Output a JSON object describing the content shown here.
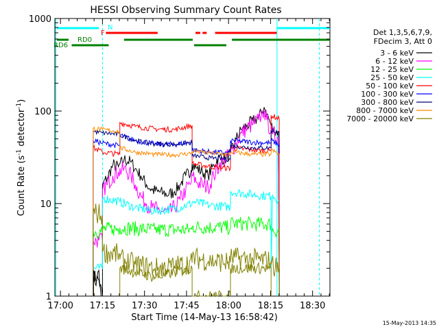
{
  "chart_data": {
    "type": "line",
    "title": "HESSI Observing Summary Count Rates",
    "xlabel": "Start Time (14-May-13 16:58:42)",
    "ylabel_main": "Count Rate (s",
    "ylabel_sup1": "-1",
    "ylabel_mid": " detector",
    "ylabel_sup2": "-1",
    "ylabel_end": ")",
    "y_scale": "log",
    "ylim": [
      1,
      1000
    ],
    "xlim_minutes": [
      -0.7,
      97.5
    ],
    "x_ticks": [
      {
        "label": "17:00",
        "m": 1.3
      },
      {
        "label": "17:15",
        "m": 16.3
      },
      {
        "label": "17:30",
        "m": 31.3
      },
      {
        "label": "17:45",
        "m": 46.3
      },
      {
        "label": "18:00",
        "m": 61.3
      },
      {
        "label": "18:15",
        "m": 76.3
      },
      {
        "label": "18:30",
        "m": 91.3
      }
    ],
    "y_ticks": [
      {
        "label": "1",
        "v": 1
      },
      {
        "label": "10",
        "v": 10
      },
      {
        "label": "100",
        "v": 100
      },
      {
        "label": "1000",
        "v": 1000
      }
    ],
    "legend_header": [
      "Det 1,3,5,6,7,9,",
      "FDecim 3, Att 0"
    ],
    "legend_position": "top-right, outside plot",
    "series": [
      {
        "name": "3 - 6 keV",
        "color": "#000000",
        "values": [
          [
            13.0,
            1.0
          ],
          [
            13.0,
            1.7
          ],
          [
            15,
            1.5
          ],
          [
            16.3,
            1.0
          ],
          [
            16.3,
            16
          ],
          [
            18,
            19
          ],
          [
            20,
            26
          ],
          [
            22,
            25
          ],
          [
            24,
            30
          ],
          [
            26.5,
            28
          ],
          [
            28,
            24
          ],
          [
            30,
            20
          ],
          [
            32,
            16
          ],
          [
            34,
            14
          ],
          [
            36,
            13.5
          ],
          [
            38,
            13
          ],
          [
            40,
            12.5
          ],
          [
            42,
            13.5
          ],
          [
            44,
            16
          ],
          [
            46,
            20
          ],
          [
            48,
            23
          ],
          [
            48.3,
            27
          ],
          [
            50,
            24
          ],
          [
            52,
            22
          ],
          [
            54,
            20
          ],
          [
            56,
            26
          ],
          [
            58,
            32
          ],
          [
            60,
            30
          ],
          [
            62,
            35
          ],
          [
            64,
            50
          ],
          [
            66,
            64
          ],
          [
            68,
            70
          ],
          [
            70,
            78
          ],
          [
            72,
            85
          ],
          [
            73,
            95
          ],
          [
            74,
            110
          ],
          [
            75,
            93
          ],
          [
            76.5,
            70
          ],
          [
            77,
            64
          ],
          [
            79,
            60
          ],
          [
            79.4,
            1.0
          ]
        ]
      },
      {
        "name": "6 - 12 keV",
        "color": "#ff00ff",
        "values": [
          [
            13.0,
            1.0
          ],
          [
            13.0,
            4.0
          ],
          [
            15,
            4.0
          ],
          [
            16.3,
            4.0
          ],
          [
            16.3,
            14
          ],
          [
            18,
            16
          ],
          [
            20,
            20
          ],
          [
            22,
            22
          ],
          [
            24,
            24
          ],
          [
            26.5,
            20
          ],
          [
            28,
            16
          ],
          [
            30,
            12
          ],
          [
            32,
            10
          ],
          [
            34,
            9
          ],
          [
            36,
            8.5
          ],
          [
            38,
            8.2
          ],
          [
            40,
            8.0
          ],
          [
            42,
            9.0
          ],
          [
            44,
            11
          ],
          [
            46,
            14
          ],
          [
            48,
            17
          ],
          [
            48.3,
            20
          ],
          [
            50,
            17
          ],
          [
            52,
            16
          ],
          [
            54,
            15
          ],
          [
            56,
            20
          ],
          [
            58,
            26
          ],
          [
            60,
            30
          ],
          [
            62,
            35
          ],
          [
            64,
            45
          ],
          [
            66,
            58
          ],
          [
            68,
            65
          ],
          [
            70,
            72
          ],
          [
            72,
            80
          ],
          [
            73,
            90
          ],
          [
            74,
            100
          ],
          [
            75,
            80
          ],
          [
            76.5,
            60
          ],
          [
            77,
            56
          ],
          [
            79,
            52
          ],
          [
            79.4,
            3.0
          ]
        ]
      },
      {
        "name": "12 - 25 keV",
        "color": "#00ff00",
        "values": [
          [
            13.0,
            1.0
          ],
          [
            13.0,
            5.0
          ],
          [
            16.3,
            5.0
          ],
          [
            16.3,
            5.3
          ],
          [
            20,
            5.3
          ],
          [
            22.5,
            5.3
          ],
          [
            22.5,
            5.5
          ],
          [
            35,
            5.2
          ],
          [
            48.3,
            5.2
          ],
          [
            48.3,
            5.6
          ],
          [
            62,
            5.5
          ],
          [
            62,
            6.1
          ],
          [
            70,
            6.0
          ],
          [
            76.5,
            6.0
          ],
          [
            76.5,
            5.2
          ],
          [
            79.4,
            5.0
          ],
          [
            79.4,
            1.0
          ]
        ]
      },
      {
        "name": "25 - 50 keV",
        "color": "#00ffff",
        "values": [
          [
            13.0,
            1.0
          ],
          [
            13.0,
            2.0
          ],
          [
            16.3,
            2.0
          ],
          [
            16.3,
            11.5
          ],
          [
            22.5,
            10.5
          ],
          [
            22.5,
            10.5
          ],
          [
            28,
            9.0
          ],
          [
            35,
            8.3
          ],
          [
            42,
            8.8
          ],
          [
            48.3,
            10.0
          ],
          [
            48.3,
            10.5
          ],
          [
            55,
            9.5
          ],
          [
            62,
            9.2
          ],
          [
            62,
            13.5
          ],
          [
            70,
            12.5
          ],
          [
            76.5,
            12.0
          ],
          [
            76.5,
            1.8
          ],
          [
            77,
            12.5
          ],
          [
            79.4,
            10.5
          ],
          [
            79.4,
            1.0
          ]
        ]
      },
      {
        "name": "50 - 100 keV",
        "color": "#ff0000",
        "values": [
          [
            13.0,
            1.0
          ],
          [
            13.0,
            40
          ],
          [
            16.3,
            36
          ],
          [
            16.3,
            36
          ],
          [
            22.5,
            34
          ],
          [
            22.5,
            75
          ],
          [
            28,
            68
          ],
          [
            35,
            64
          ],
          [
            42,
            63
          ],
          [
            48.3,
            70
          ],
          [
            48.3,
            27
          ],
          [
            55,
            25
          ],
          [
            62,
            24
          ],
          [
            62,
            40
          ],
          [
            70,
            38
          ],
          [
            76.5,
            37
          ],
          [
            76.5,
            90
          ],
          [
            79.4,
            82
          ],
          [
            79.4,
            1.0
          ]
        ]
      },
      {
        "name": "100 - 300 keV",
        "color": "#0000ff",
        "values": [
          [
            13.0,
            1.0
          ],
          [
            13.0,
            48
          ],
          [
            16.3,
            45
          ],
          [
            16.3,
            45
          ],
          [
            22.5,
            42
          ],
          [
            22.5,
            55
          ],
          [
            28,
            48
          ],
          [
            35,
            44
          ],
          [
            42,
            43.5
          ],
          [
            48.3,
            46
          ],
          [
            48.3,
            38
          ],
          [
            55,
            36
          ],
          [
            62,
            35
          ],
          [
            62,
            48
          ],
          [
            70,
            46
          ],
          [
            76.5,
            45
          ],
          [
            76.5,
            48
          ],
          [
            79.4,
            43
          ],
          [
            79.4,
            1.0
          ]
        ]
      },
      {
        "name": "300 - 800 keV",
        "color": "#000080",
        "values": [
          [
            13.0,
            1.0
          ],
          [
            13.0,
            60
          ],
          [
            16.3,
            58
          ],
          [
            16.3,
            58
          ],
          [
            22.5,
            56
          ],
          [
            22.5,
            55
          ],
          [
            28,
            48
          ],
          [
            35,
            44
          ],
          [
            42,
            43.5
          ],
          [
            48.3,
            46
          ],
          [
            48.3,
            33
          ],
          [
            55,
            31
          ],
          [
            62,
            30
          ],
          [
            62,
            42
          ],
          [
            70,
            40
          ],
          [
            76.5,
            40
          ],
          [
            76.5,
            62
          ],
          [
            79.4,
            58
          ],
          [
            79.4,
            1.0
          ]
        ]
      },
      {
        "name": "800 - 7000 keV",
        "color": "#ff8800",
        "values": [
          [
            13.0,
            1.0
          ],
          [
            13.0,
            65
          ],
          [
            16.3,
            63
          ],
          [
            16.3,
            63
          ],
          [
            22.5,
            60
          ],
          [
            22.5,
            40
          ],
          [
            28,
            36
          ],
          [
            35,
            34
          ],
          [
            42,
            33.5
          ],
          [
            48.3,
            35
          ],
          [
            48.3,
            37
          ],
          [
            55,
            35
          ],
          [
            62,
            34
          ],
          [
            62,
            36
          ],
          [
            70,
            34
          ],
          [
            76.5,
            34
          ],
          [
            76.5,
            38
          ],
          [
            79.4,
            34
          ],
          [
            79.4,
            1.0
          ]
        ]
      },
      {
        "name": "7000 - 20000 keV",
        "color": "#808000",
        "values": [
          [
            13.0,
            1.0
          ],
          [
            13.0,
            8.0
          ],
          [
            16.3,
            7.5
          ],
          [
            16.3,
            3.0
          ],
          [
            22.5,
            2.8
          ],
          [
            22.5,
            2.5
          ],
          [
            28,
            2.2
          ],
          [
            35,
            2.0
          ],
          [
            42,
            2.1
          ],
          [
            48.3,
            2.3
          ],
          [
            48.3,
            2.6
          ],
          [
            55,
            2.4
          ],
          [
            62,
            2.3
          ],
          [
            62,
            2.6
          ],
          [
            70,
            2.5
          ],
          [
            76.5,
            2.4
          ],
          [
            76.5,
            2.2
          ],
          [
            79.4,
            2.0
          ],
          [
            79.4,
            1.0
          ]
        ]
      },
      {
        "name": "7000 - 20000 keV (low)",
        "color": "#808000",
        "values": [
          [
            22.5,
            1.0
          ],
          [
            22.5,
            2.0
          ],
          [
            35,
            1.6
          ],
          [
            48.3,
            2.0
          ],
          [
            48.3,
            1.0
          ],
          [
            62,
            1.0
          ],
          [
            62,
            2.0
          ],
          [
            76.5,
            2.0
          ],
          [
            76.5,
            1.0
          ]
        ]
      },
      {
        "name": "3 - 6 keV (spikes)",
        "color": "#000000",
        "values": [
          [
            13.1,
            1.0
          ],
          [
            13.1,
            1.9
          ],
          [
            14,
            1.3
          ],
          [
            15,
            1.9
          ],
          [
            15.8,
            1.0
          ]
        ]
      }
    ],
    "flag_bars": [
      {
        "name": "N",
        "color": "#00ffff",
        "level": 0,
        "spans": [
          [
            0,
            15.0
          ],
          [
            78.6,
            97.5
          ]
        ]
      },
      {
        "name": "F",
        "color": "#ff0000",
        "level": 1,
        "spans": [
          [
            17.5,
            36
          ],
          [
            49.5,
            51.2
          ],
          [
            52,
            53.5
          ],
          [
            56.5,
            78.5
          ]
        ]
      },
      {
        "name": "RD0",
        "color": "#008000",
        "level": 2,
        "spans": [
          [
            0,
            4.2
          ],
          [
            24,
            48.5
          ],
          [
            62.5,
            97.5
          ]
        ]
      },
      {
        "name": "RD6",
        "color": "#008000",
        "level": 3,
        "spans": [
          [
            5.3,
            18.5
          ],
          [
            49,
            60.5
          ]
        ]
      }
    ],
    "flag_labels": [
      "N",
      "F",
      "RD0",
      "RD6"
    ],
    "event_lines_minutes": {
      "cyan_dashed": [
        16.3,
        93.7
      ],
      "cyan_solid": [
        78.6
      ]
    },
    "left_edge_cyan": -0.4
  },
  "timestamp": "15-May-2013 14:35"
}
